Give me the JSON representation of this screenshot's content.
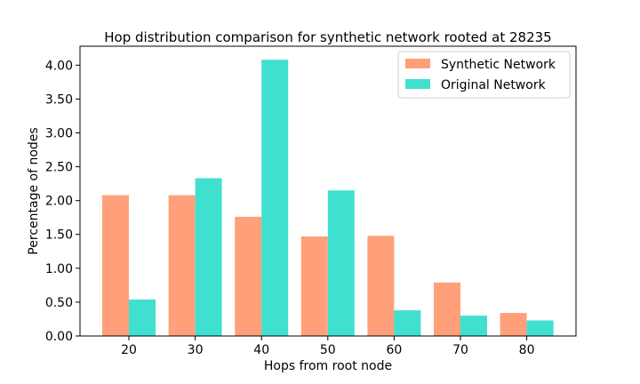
{
  "chart_data": {
    "type": "bar",
    "title": "Hop distribution comparison for synthetic network rooted at 28235",
    "xlabel": "Hops from root node",
    "ylabel": "Percentage of nodes",
    "categories": [
      "20",
      "30",
      "40",
      "50",
      "60",
      "70",
      "80"
    ],
    "series": [
      {
        "name": "Synthetic Network",
        "color": "#ffa07a",
        "values": [
          2.08,
          2.08,
          1.76,
          1.47,
          1.48,
          0.79,
          0.34
        ]
      },
      {
        "name": "Original Network",
        "color": "#40e0d0",
        "values": [
          0.54,
          2.33,
          4.08,
          2.15,
          0.38,
          0.3,
          0.23
        ]
      }
    ],
    "yticks": [
      "0.00",
      "0.50",
      "1.00",
      "1.50",
      "2.00",
      "2.50",
      "3.00",
      "3.50",
      "4.00"
    ],
    "ylim": [
      0,
      4.28
    ],
    "grid": false,
    "legend_position": "top-right"
  }
}
